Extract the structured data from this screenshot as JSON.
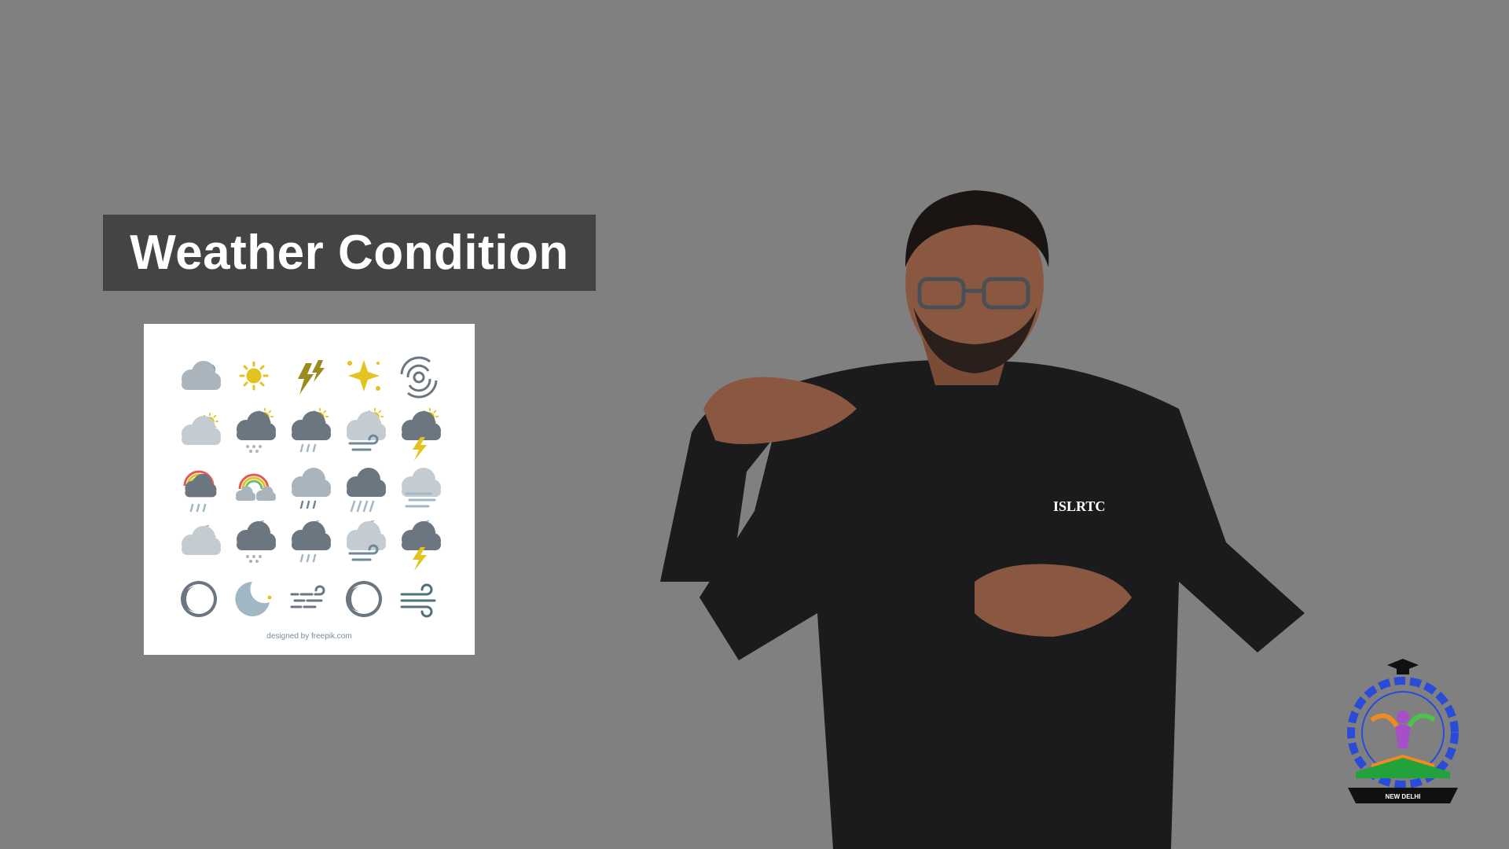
{
  "slide": {
    "title": "Weather Condition"
  },
  "icon_card": {
    "credit": "designed by freepik.com",
    "icons": [
      [
        "cloud-sun-icon",
        "sun-icon",
        "lightning-icon",
        "sparkle-icon",
        "cyclone-icon"
      ],
      [
        "partly-cloudy-day-icon",
        "snow-day-icon",
        "rain-day-icon",
        "wind-day-icon",
        "storm-day-icon"
      ],
      [
        "rainbow-rain-icon",
        "rainbow-cloud-icon",
        "rain-icon",
        "heavy-rain-icon",
        "fog-icon"
      ],
      [
        "partly-cloudy-night-icon",
        "snow-night-icon",
        "rain-night-icon",
        "wind-night-icon",
        "storm-night-icon"
      ],
      [
        "moon-icon",
        "crescent-moon-icon",
        "wind-gust-icon",
        "moon-outline-icon",
        "wind-icon"
      ]
    ]
  },
  "presenter": {
    "shirt_text": "ISLRTC"
  },
  "logo": {
    "text": "NEW DELHI"
  },
  "colors": {
    "background": "#808080",
    "title_bg": "#444444",
    "cloud": "#a9b4bc",
    "sun": "#e4c21f",
    "dark_cloud": "#6b7680",
    "moon": "#9fb8c4"
  }
}
